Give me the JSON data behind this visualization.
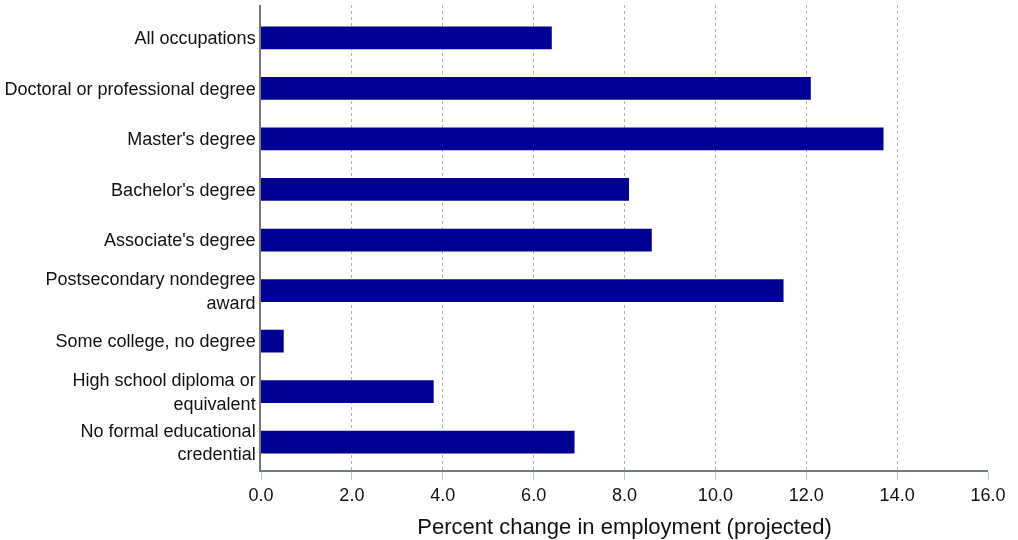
{
  "chart_data": {
    "type": "bar",
    "orientation": "horizontal",
    "xlabel": "Percent change in employment (projected)",
    "categories": [
      "All occupations",
      "Doctoral or professional degree",
      "Master's degree",
      "Bachelor's degree",
      "Associate's degree",
      "Postsecondary nondegree\naward",
      "Some college, no degree",
      "High school diploma or\nequivalent",
      "No formal educational\ncredential"
    ],
    "values": [
      6.4,
      12.1,
      13.7,
      8.1,
      8.6,
      11.5,
      0.5,
      3.8,
      6.9
    ],
    "color": "#000093",
    "xlim": [
      0,
      16
    ],
    "xticks": [
      {
        "value": 0,
        "label": "0.0"
      },
      {
        "value": 2,
        "label": "2.0"
      },
      {
        "value": 4,
        "label": "4.0"
      },
      {
        "value": 6,
        "label": "6.0"
      },
      {
        "value": 8,
        "label": "8.0"
      },
      {
        "value": 10,
        "label": "10.0"
      },
      {
        "value": 12,
        "label": "12.0"
      },
      {
        "value": 14,
        "label": "14.0"
      },
      {
        "value": 16,
        "label": "16.0"
      }
    ],
    "grid": "x"
  }
}
